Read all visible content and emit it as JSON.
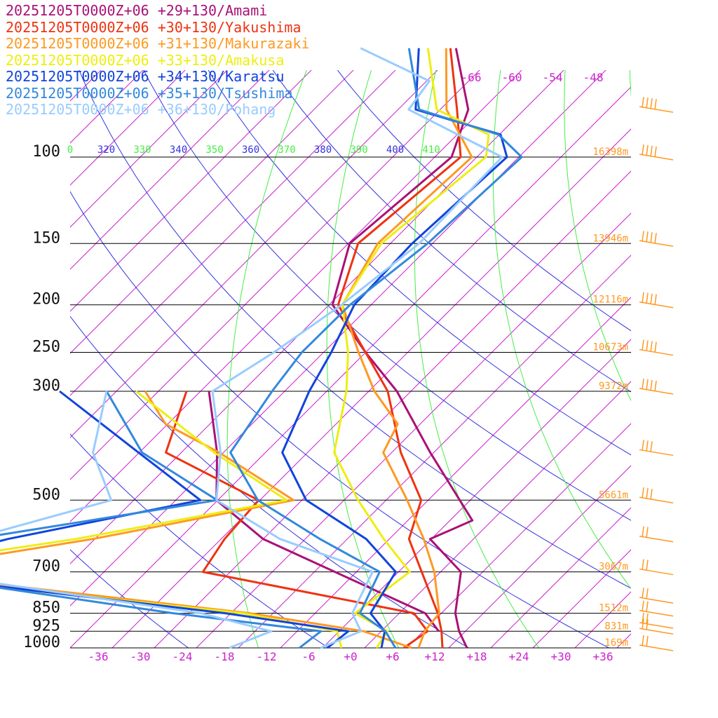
{
  "chart_data": {
    "type": "line",
    "title": "",
    "xlabel": "",
    "ylabel": "",
    "x_axis": {
      "ticks": [
        -36,
        -30,
        -24,
        -18,
        -12,
        -6,
        0,
        6,
        12,
        18,
        24,
        30,
        36
      ],
      "labels": [
        "-36",
        "-30",
        "-24",
        "-18",
        "-12",
        "-6",
        "+0",
        "+6",
        "+12",
        "+18",
        "+24",
        "+30",
        "+36"
      ],
      "range": [
        -40,
        40
      ]
    },
    "y_axis": {
      "pressure_levels": [
        100,
        150,
        200,
        250,
        300,
        500,
        700,
        850,
        925,
        1000
      ],
      "range": [
        100,
        1000
      ],
      "scale": "log"
    },
    "heights": [
      {
        "p": 100,
        "label": "16398m"
      },
      {
        "p": 150,
        "label": "13946m"
      },
      {
        "p": 200,
        "label": "12116m"
      },
      {
        "p": 250,
        "label": "10673m"
      },
      {
        "p": 300,
        "label": "9372m"
      },
      {
        "p": 500,
        "label": "5661m"
      },
      {
        "p": 700,
        "label": "3067m"
      },
      {
        "p": 850,
        "label": "1512m"
      },
      {
        "p": 925,
        "label": "831m"
      },
      {
        "p": 1000,
        "label": "169m"
      }
    ],
    "theta_labels": [
      "0",
      "320",
      "330",
      "340",
      "350",
      "360",
      "370",
      "380",
      "390",
      "400",
      "410"
    ],
    "isotherm_top_labels": [
      "-66",
      "-60",
      "-54",
      "-48"
    ],
    "series": [
      {
        "name": "20251205T0000Z+06 +29+130/Amami",
        "color": "#aa1177",
        "temperature": [
          [
            60,
            -70.5
          ],
          [
            80,
            -60
          ],
          [
            100,
            -55.6
          ],
          [
            150,
            -57.8
          ],
          [
            200,
            -51.5
          ],
          [
            250,
            -40
          ],
          [
            300,
            -30
          ],
          [
            400,
            -16.5
          ],
          [
            500,
            -5.5
          ],
          [
            550,
            -0.8
          ],
          [
            600,
            -4.2
          ],
          [
            700,
            4.9
          ],
          [
            850,
            10
          ],
          [
            925,
            13.1
          ],
          [
            1000,
            16.6
          ]
        ],
        "dewpoint": [
          [
            300,
            -56.8
          ],
          [
            400,
            -46.9
          ],
          [
            500,
            -40.2
          ],
          [
            600,
            -28
          ],
          [
            850,
            5.7
          ],
          [
            925,
            10.2
          ]
        ]
      },
      {
        "name": "20251205T0000Z+06 +30+130/Yakushima",
        "color": "#ee3311",
        "temperature": [
          [
            60,
            -71.3
          ],
          [
            80,
            -61.6
          ],
          [
            100,
            -54.3
          ],
          [
            150,
            -56.6
          ],
          [
            200,
            -50.7
          ],
          [
            250,
            -40
          ],
          [
            300,
            -31.3
          ],
          [
            400,
            -20.7
          ],
          [
            500,
            -11
          ],
          [
            600,
            -7.2
          ],
          [
            700,
            -0.7
          ],
          [
            850,
            7.5
          ],
          [
            925,
            10.6
          ],
          [
            1000,
            13.1
          ]
        ],
        "dewpoint": [
          [
            300,
            -60
          ],
          [
            400,
            -54.2
          ],
          [
            500,
            -34.2
          ],
          [
            600,
            -33.5
          ],
          [
            700,
            -31.9
          ],
          [
            850,
            4.1
          ],
          [
            925,
            8.6
          ],
          [
            1000,
            7.6
          ]
        ]
      },
      {
        "name": "20251205T0000Z+06 +31+130/Makurazaki",
        "color": "#ff9922",
        "temperature": [
          [
            60,
            -71.9
          ],
          [
            80,
            -63.1
          ],
          [
            100,
            -52.7
          ],
          [
            150,
            -53.8
          ],
          [
            200,
            -50.1
          ],
          [
            250,
            -41
          ],
          [
            300,
            -33.2
          ],
          [
            350,
            -25.2
          ],
          [
            400,
            -23.2
          ],
          [
            500,
            -13
          ],
          [
            600,
            -5.1
          ],
          [
            700,
            1.1
          ],
          [
            850,
            7.7
          ],
          [
            925,
            8.2
          ],
          [
            1000,
            9.7
          ]
        ],
        "dewpoint": [
          [
            300,
            -65.9
          ],
          [
            350,
            -58.3
          ],
          [
            400,
            -46.6
          ],
          [
            500,
            -29.2
          ],
          [
            600,
            -52.3
          ],
          [
            700,
            -76.6
          ],
          [
            850,
            -19.3
          ],
          [
            925,
            -0.5
          ],
          [
            1000,
            8.7
          ]
        ]
      },
      {
        "name": "20251205T0000Z+06 +33+130/Amakusa",
        "color": "#eeee11",
        "temperature": [
          [
            60,
            -74.5
          ],
          [
            80,
            -64.5
          ],
          [
            90,
            -53.5
          ],
          [
            100,
            -50.7
          ],
          [
            150,
            -53.3
          ],
          [
            200,
            -50.1
          ],
          [
            250,
            -42.5
          ],
          [
            300,
            -37.2
          ],
          [
            400,
            -30.2
          ],
          [
            500,
            -20
          ],
          [
            600,
            -10.8
          ],
          [
            700,
            -2.4
          ],
          [
            850,
            -4.3
          ],
          [
            925,
            2.9
          ],
          [
            1000,
            3.7
          ]
        ],
        "dewpoint": [
          [
            300,
            -67.2
          ],
          [
            400,
            -47.3
          ],
          [
            500,
            -30.2
          ],
          [
            600,
            -54.7
          ],
          [
            700,
            -81.4
          ],
          [
            850,
            -20.3
          ],
          [
            925,
            -4.3
          ],
          [
            1000,
            -1.3
          ]
        ]
      },
      {
        "name": "20251205T0000Z+06 +34+130/Karatsu",
        "color": "#1144dd",
        "temperature": [
          [
            60,
            -75.8
          ],
          [
            80,
            -67.5
          ],
          [
            90,
            -51.8
          ],
          [
            100,
            -47.7
          ],
          [
            150,
            -48.9
          ],
          [
            200,
            -48.4
          ],
          [
            250,
            -44.9
          ],
          [
            300,
            -42.5
          ],
          [
            400,
            -37.6
          ],
          [
            500,
            -27.4
          ],
          [
            600,
            -13.3
          ],
          [
            700,
            -4.4
          ],
          [
            850,
            -2.1
          ],
          [
            925,
            2.5
          ],
          [
            1000,
            4.4
          ]
        ],
        "dewpoint": [
          [
            300,
            -78.1
          ],
          [
            400,
            -58.1
          ],
          [
            500,
            -42.5
          ],
          [
            600,
            -64.4
          ],
          [
            700,
            -78.5
          ],
          [
            850,
            -22.8
          ],
          [
            925,
            -2.7
          ],
          [
            1000,
            -3.3
          ]
        ]
      },
      {
        "name": "20251205T0000Z+06 +35+130/Tsushima",
        "color": "#3388dd",
        "temperature": [
          [
            60,
            -77.2
          ],
          [
            80,
            -67
          ],
          [
            90,
            -52.1
          ],
          [
            100,
            -45.6
          ],
          [
            150,
            -46.7
          ],
          [
            200,
            -49
          ],
          [
            250,
            -49.1
          ],
          [
            300,
            -47.8
          ],
          [
            400,
            -45
          ],
          [
            500,
            -34.3
          ],
          [
            600,
            -19.9
          ],
          [
            700,
            -6.7
          ],
          [
            850,
            -3.6
          ],
          [
            925,
            2.6
          ],
          [
            1000,
            6.4
          ]
        ],
        "dewpoint": [
          [
            300,
            -71.4
          ],
          [
            400,
            -57.6
          ],
          [
            500,
            -40.1
          ],
          [
            600,
            -69.2
          ],
          [
            700,
            -76.4
          ],
          [
            850,
            -30.2
          ],
          [
            925,
            -6.6
          ],
          [
            1000,
            -7.3
          ]
        ]
      },
      {
        "name": "20251205T0000Z+06 +36+130/Pohang",
        "color": "#99ccff",
        "temperature": [
          [
            60,
            -84.1
          ],
          [
            70,
            -69.6
          ],
          [
            80,
            -68.5
          ],
          [
            100,
            -48.4
          ],
          [
            150,
            -47.9
          ],
          [
            200,
            -50.2
          ],
          [
            250,
            -53.1
          ],
          [
            300,
            -56.3
          ],
          [
            400,
            -46.4
          ],
          [
            500,
            -40.2
          ],
          [
            600,
            -25.6
          ],
          [
            700,
            -7.7
          ],
          [
            850,
            -4.7
          ],
          [
            925,
            -0.9
          ],
          [
            1000,
            -4.3
          ]
        ],
        "dewpoint": [
          [
            300,
            -71.4
          ],
          [
            400,
            -64.6
          ],
          [
            500,
            -55.2
          ],
          [
            600,
            -69.7
          ],
          [
            700,
            -72.5
          ],
          [
            850,
            -26.3
          ],
          [
            925,
            -13.7
          ],
          [
            1000,
            -17.3
          ]
        ]
      }
    ],
    "wind_barbs_color": "#ff9922"
  }
}
